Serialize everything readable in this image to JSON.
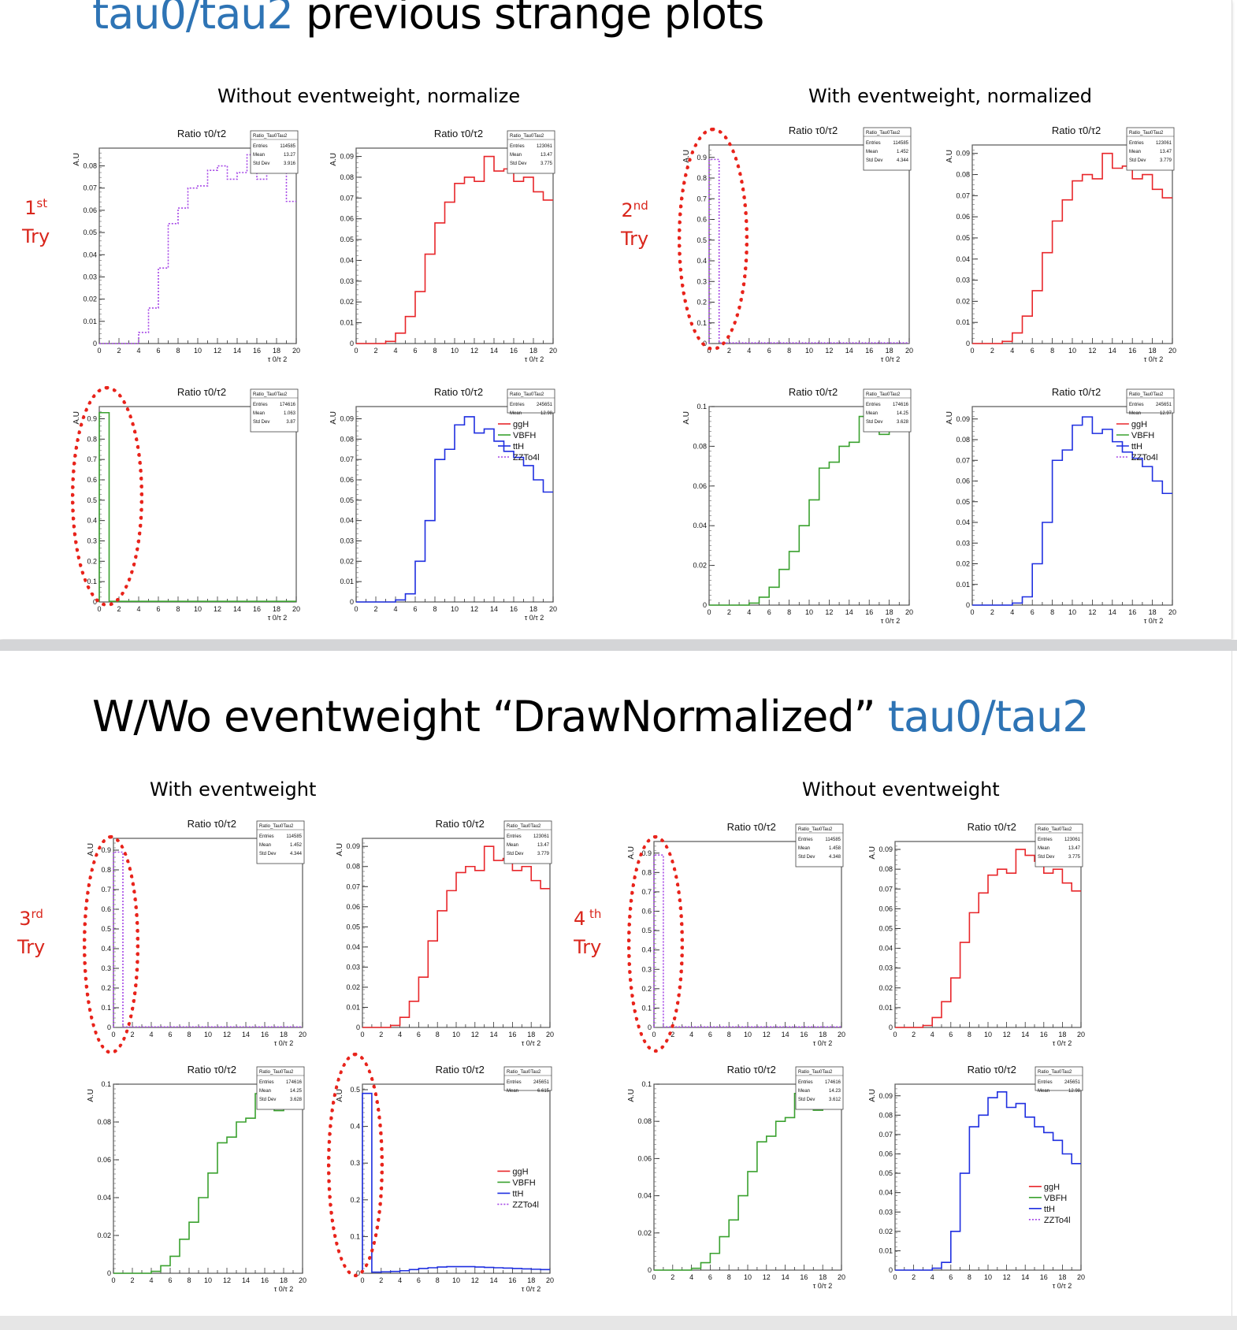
{
  "slide1": {
    "title_blue": "tau0/tau2",
    "title_black": " previous strange plots",
    "left_subtitle": "Without  eventweight, normalize",
    "right_subtitle": "With eventweight, normalized",
    "try_left": {
      "num": "1",
      "sup": "st",
      "word": "Try"
    },
    "try_right": {
      "num": "2",
      "sup": "nd",
      "word": "Try"
    }
  },
  "slide2": {
    "title_black": "W/Wo eventweight “DrawNormalized” ",
    "title_blue": "tau0/tau2",
    "left_subtitle": "With eventweight",
    "right_subtitle": "Without  eventweight",
    "try_left": {
      "num": "3",
      "sup": "rd",
      "word": "Try"
    },
    "try_right": {
      "num": "4",
      "sup": " th",
      "word": "Try"
    }
  },
  "common": {
    "plot_title": "Ratio τ0/τ2",
    "ylabel": "A.U",
    "xlabel": "τ 0/τ 2",
    "stats_name": "Ratio_Tau0Tau2",
    "legend": [
      {
        "label": "ggH",
        "color": "#e8262a",
        "style": "solid"
      },
      {
        "label": "VBFH",
        "color": "#3aa12f",
        "style": "solid"
      },
      {
        "label": "ttH",
        "color": "#1f2fe0",
        "style": "solid"
      },
      {
        "label": "ZZTo4l",
        "color": "#a546e6",
        "style": "dotted"
      }
    ]
  },
  "colors": {
    "ggH": "#e8262a",
    "VBFH": "#3aa12f",
    "ttH": "#1f2fe0",
    "ZZTo4l": "#a546e6",
    "accent_blue": "#2e74b5",
    "annotation_red": "#d9261c"
  },
  "chart_data": [
    {
      "type": "bar",
      "panel": "try1-zzto4l",
      "title": "Ratio τ0/τ2",
      "xlabel": "τ 0/τ 2",
      "ylabel": "A.U",
      "xlim": [
        0,
        20
      ],
      "ylim": [
        0,
        0.088
      ],
      "series": [
        {
          "name": "ZZTo4l",
          "values": [
            0,
            0,
            0,
            0,
            0.005,
            0.016,
            0.034,
            0.054,
            0.061,
            0.07,
            0.071,
            0.078,
            0.08,
            0.074,
            0.077,
            0.085,
            0.074,
            0.08,
            0.083,
            0.064
          ]
        }
      ],
      "stats": {
        "Entries": "114585",
        "Mean": "13.27",
        "Std Dev": "3.916"
      }
    },
    {
      "type": "bar",
      "panel": "try1-ggh",
      "title": "Ratio τ0/τ2",
      "xlabel": "τ 0/τ 2",
      "ylabel": "A.U",
      "xlim": [
        0,
        20
      ],
      "ylim": [
        0,
        0.094
      ],
      "series": [
        {
          "name": "ggH",
          "values": [
            0,
            0,
            0,
            0.001,
            0.005,
            0.013,
            0.025,
            0.043,
            0.058,
            0.068,
            0.077,
            0.08,
            0.078,
            0.09,
            0.083,
            0.084,
            0.078,
            0.08,
            0.073,
            0.069
          ]
        }
      ],
      "stats": {
        "Entries": "123061",
        "Mean": "13.47",
        "Std Dev": "3.775"
      }
    },
    {
      "type": "bar",
      "panel": "try1-vbfh",
      "title": "Ratio τ0/τ2",
      "xlabel": "τ 0/τ 2",
      "ylabel": "A.U",
      "xlim": [
        0,
        20
      ],
      "ylim": [
        0,
        0.96
      ],
      "series": [
        {
          "name": "VBFH",
          "values": [
            0.93,
            0.003,
            0.003,
            0.003,
            0.003,
            0.003,
            0.003,
            0.003,
            0.003,
            0.003,
            0.003,
            0.003,
            0.003,
            0.003,
            0.003,
            0.003,
            0.003,
            0.003,
            0.003,
            0.003
          ]
        }
      ],
      "stats": {
        "Entries": "174616",
        "Mean": "1.063",
        "Std Dev": "3.87"
      }
    },
    {
      "type": "bar",
      "panel": "try1-tth",
      "title": "Ratio τ0/τ2",
      "xlabel": "τ 0/τ 2",
      "ylabel": "A.U",
      "xlim": [
        0,
        20
      ],
      "ylim": [
        0,
        0.096
      ],
      "series": [
        {
          "name": "ttH",
          "values": [
            0,
            0,
            0,
            0,
            0.001,
            0.004,
            0.02,
            0.04,
            0.07,
            0.075,
            0.087,
            0.091,
            0.083,
            0.085,
            0.079,
            0.074,
            0.071,
            0.067,
            0.06,
            0.054
          ]
        }
      ],
      "stats": {
        "Entries": "245651",
        "Mean": "12.98",
        "Std Dev": "3.722"
      }
    },
    {
      "type": "bar",
      "panel": "try2-zzto4l",
      "title": "Ratio τ0/τ2",
      "xlabel": "τ 0/τ 2",
      "ylabel": "A.U",
      "xlim": [
        0,
        20
      ],
      "ylim": [
        0,
        0.96
      ],
      "series": [
        {
          "name": "ZZTo4l",
          "values": [
            0.89,
            0.003,
            0.003,
            0.003,
            0.003,
            0.003,
            0.003,
            0.003,
            0.003,
            0.003,
            0.003,
            0.003,
            0.003,
            0.003,
            0.003,
            0.003,
            0.003,
            0.003,
            0.003,
            0.003
          ]
        }
      ],
      "stats": {
        "Entries": "114585",
        "Mean": "1.452",
        "Std Dev": "4.344"
      }
    },
    {
      "type": "bar",
      "panel": "try2-ggh",
      "title": "Ratio τ0/τ2",
      "xlabel": "τ 0/τ 2",
      "ylabel": "A.U",
      "xlim": [
        0,
        20
      ],
      "ylim": [
        0,
        0.094
      ],
      "series": [
        {
          "name": "ggH",
          "values": [
            0,
            0,
            0,
            0.001,
            0.005,
            0.013,
            0.025,
            0.043,
            0.058,
            0.068,
            0.077,
            0.08,
            0.078,
            0.09,
            0.083,
            0.084,
            0.078,
            0.08,
            0.073,
            0.069
          ]
        }
      ],
      "stats": {
        "Entries": "123061",
        "Mean": "13.47",
        "Std Dev": "3.779"
      }
    },
    {
      "type": "bar",
      "panel": "try2-vbfh",
      "title": "Ratio τ0/τ2",
      "xlabel": "τ 0/τ 2",
      "ylabel": "A.U",
      "xlim": [
        0,
        20
      ],
      "ylim": [
        0,
        0.1
      ],
      "series": [
        {
          "name": "VBFH",
          "values": [
            0,
            0,
            0,
            0,
            0.001,
            0.004,
            0.009,
            0.018,
            0.027,
            0.04,
            0.053,
            0.069,
            0.072,
            0.08,
            0.082,
            0.095,
            0.093,
            0.086,
            0.088,
            0.091
          ]
        }
      ],
      "stats": {
        "Entries": "174616",
        "Mean": "14.25",
        "Std Dev": "3.628"
      }
    },
    {
      "type": "bar",
      "panel": "try2-tth",
      "title": "Ratio τ0/τ2",
      "xlabel": "τ 0/τ 2",
      "ylabel": "A.U",
      "xlim": [
        0,
        20
      ],
      "ylim": [
        0,
        0.096
      ],
      "series": [
        {
          "name": "ttH",
          "values": [
            0,
            0,
            0,
            0,
            0.001,
            0.004,
            0.02,
            0.04,
            0.07,
            0.075,
            0.087,
            0.091,
            0.083,
            0.085,
            0.079,
            0.074,
            0.071,
            0.067,
            0.06,
            0.054
          ]
        }
      ],
      "stats": {
        "Entries": "245651",
        "Mean": "12.97",
        "Std Dev": "3.718"
      }
    },
    {
      "type": "bar",
      "panel": "try3-zzto4l",
      "title": "Ratio τ0/τ2",
      "xlabel": "τ 0/τ 2",
      "ylabel": "A.U",
      "xlim": [
        0,
        20
      ],
      "ylim": [
        0,
        0.96
      ],
      "series": [
        {
          "name": "ZZTo4l",
          "values": [
            0.89,
            0.003,
            0.003,
            0.003,
            0.003,
            0.003,
            0.003,
            0.003,
            0.003,
            0.003,
            0.003,
            0.003,
            0.003,
            0.003,
            0.003,
            0.003,
            0.003,
            0.003,
            0.003,
            0.003
          ]
        }
      ],
      "stats": {
        "Entries": "114585",
        "Mean": "1.452",
        "Std Dev": "4.344"
      }
    },
    {
      "type": "bar",
      "panel": "try3-ggh",
      "title": "Ratio τ0/τ2",
      "xlabel": "τ 0/τ 2",
      "ylabel": "A.U",
      "xlim": [
        0,
        20
      ],
      "ylim": [
        0,
        0.094
      ],
      "series": [
        {
          "name": "ggH",
          "values": [
            0,
            0,
            0,
            0.001,
            0.005,
            0.013,
            0.025,
            0.043,
            0.058,
            0.068,
            0.077,
            0.08,
            0.078,
            0.09,
            0.083,
            0.084,
            0.078,
            0.08,
            0.073,
            0.069
          ]
        }
      ],
      "stats": {
        "Entries": "123061",
        "Mean": "13.47",
        "Std Dev": "3.779"
      }
    },
    {
      "type": "bar",
      "panel": "try3-vbfh",
      "title": "Ratio τ0/τ2",
      "xlabel": "τ 0/τ 2",
      "ylabel": "A.U",
      "xlim": [
        0,
        20
      ],
      "ylim": [
        0,
        0.1
      ],
      "series": [
        {
          "name": "VBFH",
          "values": [
            0,
            0,
            0,
            0,
            0.001,
            0.004,
            0.009,
            0.018,
            0.027,
            0.04,
            0.053,
            0.069,
            0.072,
            0.08,
            0.082,
            0.095,
            0.093,
            0.086,
            0.088,
            0.091
          ]
        }
      ],
      "stats": {
        "Entries": "174616",
        "Mean": "14.25",
        "Std Dev": "3.628"
      }
    },
    {
      "type": "bar",
      "panel": "try3-tth",
      "title": "Ratio τ0/τ2",
      "xlabel": "τ 0/τ 2",
      "ylabel": "A.U",
      "xlim": [
        0,
        20
      ],
      "ylim": [
        0,
        0.515
      ],
      "series": [
        {
          "name": "ttH",
          "values": [
            0.49,
            0.003,
            0.004,
            0.005,
            0.007,
            0.01,
            0.013,
            0.015,
            0.017,
            0.018,
            0.018,
            0.018,
            0.017,
            0.016,
            0.015,
            0.014,
            0.013,
            0.012,
            0.011,
            0.01
          ]
        }
      ],
      "stats": {
        "Entries": "245651",
        "Mean": "6.615",
        "Std Dev": "7.008"
      }
    },
    {
      "type": "bar",
      "panel": "try4-zzto4l",
      "title": "Ratio τ0/τ2",
      "xlabel": "τ 0/τ 2",
      "ylabel": "A.U",
      "xlim": [
        0,
        20
      ],
      "ylim": [
        0,
        0.96
      ],
      "series": [
        {
          "name": "ZZTo4l",
          "values": [
            0.89,
            0.003,
            0.003,
            0.003,
            0.003,
            0.003,
            0.003,
            0.003,
            0.003,
            0.003,
            0.003,
            0.003,
            0.003,
            0.003,
            0.003,
            0.003,
            0.003,
            0.003,
            0.003,
            0.003
          ]
        }
      ],
      "stats": {
        "Entries": "114585",
        "Mean": "1.458",
        "Std Dev": "4.348"
      }
    },
    {
      "type": "bar",
      "panel": "try4-ggh",
      "title": "Ratio τ0/τ2",
      "xlabel": "τ 0/τ 2",
      "ylabel": "A.U",
      "xlim": [
        0,
        20
      ],
      "ylim": [
        0,
        0.094
      ],
      "series": [
        {
          "name": "ggH",
          "values": [
            0,
            0,
            0,
            0.001,
            0.005,
            0.013,
            0.025,
            0.043,
            0.058,
            0.068,
            0.077,
            0.08,
            0.078,
            0.09,
            0.087,
            0.084,
            0.078,
            0.08,
            0.073,
            0.069
          ]
        }
      ],
      "stats": {
        "Entries": "123061",
        "Mean": "13.47",
        "Std Dev": "3.775"
      }
    },
    {
      "type": "bar",
      "panel": "try4-vbfh",
      "title": "Ratio τ0/τ2",
      "xlabel": "τ 0/τ 2",
      "ylabel": "A.U",
      "xlim": [
        0,
        20
      ],
      "ylim": [
        0,
        0.1
      ],
      "series": [
        {
          "name": "VBFH",
          "values": [
            0,
            0,
            0,
            0,
            0.001,
            0.004,
            0.009,
            0.018,
            0.027,
            0.04,
            0.053,
            0.069,
            0.072,
            0.08,
            0.082,
            0.095,
            0.093,
            0.086,
            0.088,
            0.091
          ]
        }
      ],
      "stats": {
        "Entries": "174616",
        "Mean": "14.23",
        "Std Dev": "3.612"
      }
    },
    {
      "type": "bar",
      "panel": "try4-tth",
      "title": "Ratio τ0/τ2",
      "xlabel": "τ 0/τ 2",
      "ylabel": "A.U",
      "xlim": [
        0,
        20
      ],
      "ylim": [
        0,
        0.096
      ],
      "series": [
        {
          "name": "ttH",
          "values": [
            0,
            0,
            0,
            0,
            0.001,
            0.004,
            0.02,
            0.05,
            0.074,
            0.08,
            0.089,
            0.092,
            0.084,
            0.086,
            0.079,
            0.074,
            0.071,
            0.067,
            0.06,
            0.055
          ]
        }
      ],
      "stats": {
        "Entries": "245651",
        "Mean": "12.98",
        "Std Dev": "3.722"
      }
    }
  ]
}
